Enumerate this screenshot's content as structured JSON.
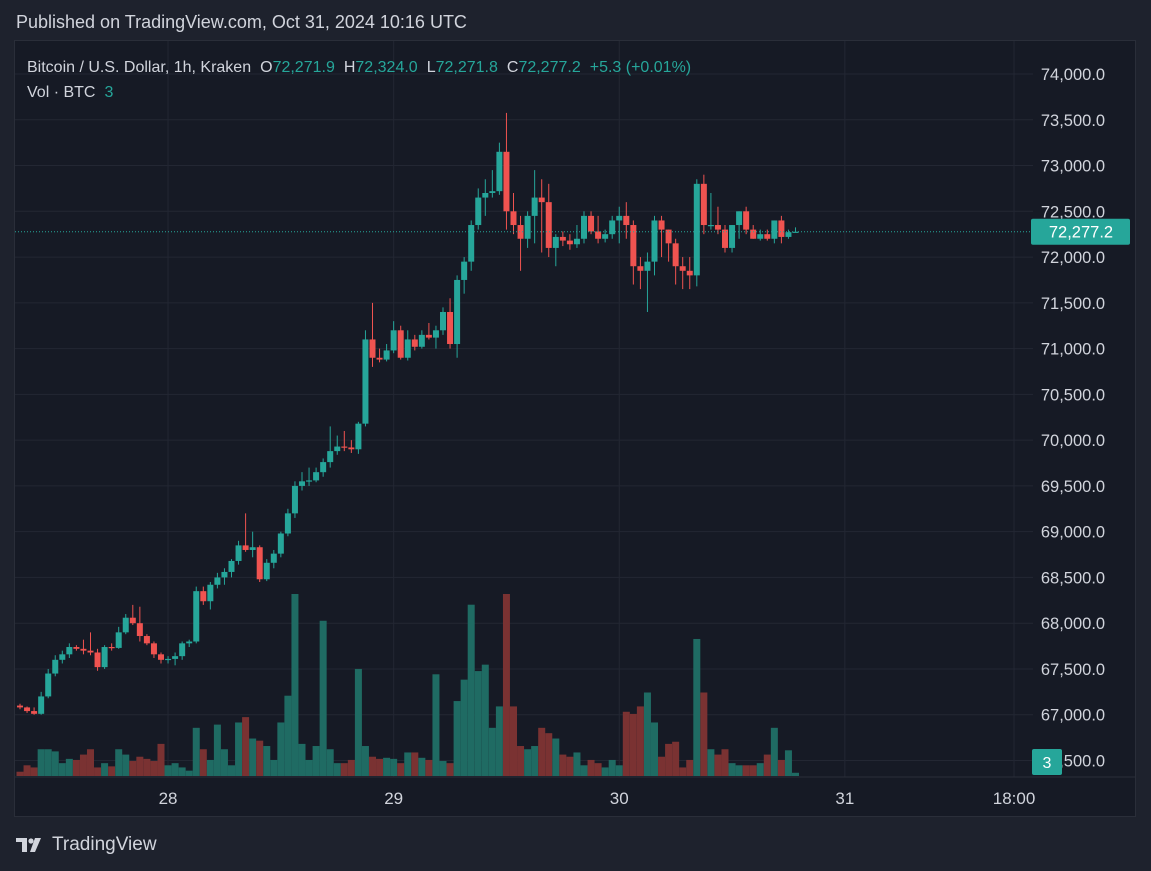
{
  "header": {
    "published": "Published on TradingView.com, Oct 31, 2024 10:16 UTC"
  },
  "legend": {
    "symbol": "Bitcoin / U.S. Dollar, 1h, Kraken",
    "o_label": "O",
    "o_value": "72,271.9",
    "h_label": "H",
    "h_value": "72,324.0",
    "l_label": "L",
    "l_value": "72,271.8",
    "c_label": "C",
    "c_value": "72,277.2",
    "change": "+5.3 (+0.01%)",
    "vol_label": "Vol · BTC",
    "vol_value": "3"
  },
  "footer": {
    "brand": "TradingView"
  },
  "colors": {
    "up": "#26a69a",
    "down": "#ef5350",
    "up_vol": "#1f6b63",
    "down_vol": "#7a3232",
    "background": "#161a25",
    "grid": "#232733"
  },
  "chart_data": {
    "type": "candlestick",
    "title": "Bitcoin / U.S. Dollar, 1h, Kraken",
    "y_axis": {
      "side": "right",
      "ticks": [
        66500,
        67000,
        67500,
        68000,
        68500,
        69000,
        69500,
        70000,
        70500,
        71000,
        71500,
        72000,
        72500,
        73000,
        73500,
        74000
      ],
      "tick_labels": [
        "66,500.0",
        "67,000.0",
        "67,500.0",
        "68,000.0",
        "68,500.0",
        "69,000.0",
        "69,500.0",
        "70,000.0",
        "70,500.0",
        "71,000.0",
        "71,500.0",
        "72,000.0",
        "72,500.0",
        "73,000.0",
        "73,500.0",
        "74,000.0"
      ]
    },
    "x_axis": {
      "labels": [
        {
          "text": "28",
          "index": 21
        },
        {
          "text": "29",
          "index": 53
        },
        {
          "text": "30",
          "index": 85
        },
        {
          "text": "31",
          "index": 117
        },
        {
          "text": "18:00",
          "index": 141
        }
      ]
    },
    "last_price": 72277.2,
    "last_price_label": "72,277.2",
    "last_volume_label": "3",
    "volume_max": 170,
    "grid": true,
    "candles": [
      {
        "o": 67100,
        "h": 67120,
        "l": 67060,
        "c": 67080,
        "v": 4
      },
      {
        "o": 67080,
        "h": 67090,
        "l": 67020,
        "c": 67040,
        "v": 10
      },
      {
        "o": 67040,
        "h": 67080,
        "l": 67000,
        "c": 67010,
        "v": 8
      },
      {
        "o": 67010,
        "h": 67250,
        "l": 67000,
        "c": 67200,
        "v": 25
      },
      {
        "o": 67200,
        "h": 67500,
        "l": 67180,
        "c": 67450,
        "v": 25
      },
      {
        "o": 67450,
        "h": 67650,
        "l": 67420,
        "c": 67600,
        "v": 23
      },
      {
        "o": 67600,
        "h": 67700,
        "l": 67560,
        "c": 67660,
        "v": 12
      },
      {
        "o": 67660,
        "h": 67780,
        "l": 67620,
        "c": 67740,
        "v": 16
      },
      {
        "o": 67740,
        "h": 67760,
        "l": 67700,
        "c": 67720,
        "v": 15
      },
      {
        "o": 67720,
        "h": 67820,
        "l": 67660,
        "c": 67700,
        "v": 20
      },
      {
        "o": 67700,
        "h": 67900,
        "l": 67650,
        "c": 67680,
        "v": 25
      },
      {
        "o": 67680,
        "h": 67720,
        "l": 67480,
        "c": 67520,
        "v": 8
      },
      {
        "o": 67520,
        "h": 67760,
        "l": 67500,
        "c": 67740,
        "v": 12
      },
      {
        "o": 67740,
        "h": 67780,
        "l": 67700,
        "c": 67730,
        "v": 9
      },
      {
        "o": 67730,
        "h": 67960,
        "l": 67720,
        "c": 67900,
        "v": 25
      },
      {
        "o": 67900,
        "h": 68100,
        "l": 67880,
        "c": 68060,
        "v": 20
      },
      {
        "o": 68060,
        "h": 68200,
        "l": 67980,
        "c": 68000,
        "v": 14
      },
      {
        "o": 68000,
        "h": 68180,
        "l": 67800,
        "c": 67860,
        "v": 18
      },
      {
        "o": 67860,
        "h": 67880,
        "l": 67760,
        "c": 67780,
        "v": 16
      },
      {
        "o": 67780,
        "h": 67800,
        "l": 67620,
        "c": 67660,
        "v": 14
      },
      {
        "o": 67660,
        "h": 67680,
        "l": 67560,
        "c": 67600,
        "v": 30
      },
      {
        "o": 67600,
        "h": 67640,
        "l": 67560,
        "c": 67610,
        "v": 10
      },
      {
        "o": 67610,
        "h": 67680,
        "l": 67540,
        "c": 67640,
        "v": 12
      },
      {
        "o": 67640,
        "h": 67800,
        "l": 67600,
        "c": 67780,
        "v": 8
      },
      {
        "o": 67780,
        "h": 67820,
        "l": 67740,
        "c": 67800,
        "v": 5
      },
      {
        "o": 67800,
        "h": 68400,
        "l": 67780,
        "c": 68350,
        "v": 45
      },
      {
        "o": 68350,
        "h": 68400,
        "l": 68200,
        "c": 68240,
        "v": 25
      },
      {
        "o": 68240,
        "h": 68450,
        "l": 68150,
        "c": 68420,
        "v": 15
      },
      {
        "o": 68420,
        "h": 68550,
        "l": 68380,
        "c": 68500,
        "v": 48
      },
      {
        "o": 68500,
        "h": 68600,
        "l": 68420,
        "c": 68560,
        "v": 25
      },
      {
        "o": 68560,
        "h": 68700,
        "l": 68500,
        "c": 68680,
        "v": 10
      },
      {
        "o": 68680,
        "h": 68900,
        "l": 68640,
        "c": 68850,
        "v": 50
      },
      {
        "o": 68850,
        "h": 69200,
        "l": 68780,
        "c": 68800,
        "v": 55
      },
      {
        "o": 68800,
        "h": 69000,
        "l": 68720,
        "c": 68830,
        "v": 35
      },
      {
        "o": 68830,
        "h": 68850,
        "l": 68450,
        "c": 68480,
        "v": 33
      },
      {
        "o": 68480,
        "h": 68700,
        "l": 68460,
        "c": 68660,
        "v": 28
      },
      {
        "o": 68660,
        "h": 68800,
        "l": 68600,
        "c": 68760,
        "v": 15
      },
      {
        "o": 68760,
        "h": 69000,
        "l": 68720,
        "c": 68980,
        "v": 50
      },
      {
        "o": 68980,
        "h": 69250,
        "l": 68950,
        "c": 69200,
        "v": 75
      },
      {
        "o": 69200,
        "h": 69550,
        "l": 69150,
        "c": 69500,
        "v": 170
      },
      {
        "o": 69500,
        "h": 69650,
        "l": 69450,
        "c": 69550,
        "v": 30
      },
      {
        "o": 69550,
        "h": 69700,
        "l": 69500,
        "c": 69560,
        "v": 15
      },
      {
        "o": 69560,
        "h": 69700,
        "l": 69540,
        "c": 69650,
        "v": 28
      },
      {
        "o": 69650,
        "h": 69800,
        "l": 69600,
        "c": 69760,
        "v": 145
      },
      {
        "o": 69760,
        "h": 70150,
        "l": 69700,
        "c": 69880,
        "v": 25
      },
      {
        "o": 69880,
        "h": 70050,
        "l": 69840,
        "c": 69930,
        "v": 12
      },
      {
        "o": 69930,
        "h": 70100,
        "l": 69880,
        "c": 69920,
        "v": 12
      },
      {
        "o": 69920,
        "h": 70000,
        "l": 69860,
        "c": 69900,
        "v": 15
      },
      {
        "o": 69900,
        "h": 70200,
        "l": 69850,
        "c": 70180,
        "v": 100
      },
      {
        "o": 70180,
        "h": 71200,
        "l": 70150,
        "c": 71100,
        "v": 28
      },
      {
        "o": 71100,
        "h": 71500,
        "l": 70800,
        "c": 70900,
        "v": 18
      },
      {
        "o": 70900,
        "h": 71000,
        "l": 70850,
        "c": 70880,
        "v": 16
      },
      {
        "o": 70880,
        "h": 71050,
        "l": 70860,
        "c": 70980,
        "v": 17
      },
      {
        "o": 70980,
        "h": 71300,
        "l": 70950,
        "c": 71200,
        "v": 16
      },
      {
        "o": 71200,
        "h": 71250,
        "l": 70880,
        "c": 70900,
        "v": 12
      },
      {
        "o": 70900,
        "h": 71200,
        "l": 70870,
        "c": 71100,
        "v": 22
      },
      {
        "o": 71100,
        "h": 71150,
        "l": 70980,
        "c": 71020,
        "v": 22
      },
      {
        "o": 71020,
        "h": 71200,
        "l": 71000,
        "c": 71150,
        "v": 17
      },
      {
        "o": 71150,
        "h": 71280,
        "l": 71100,
        "c": 71120,
        "v": 15
      },
      {
        "o": 71120,
        "h": 71250,
        "l": 71000,
        "c": 71200,
        "v": 95
      },
      {
        "o": 71200,
        "h": 71450,
        "l": 71150,
        "c": 71400,
        "v": 14
      },
      {
        "o": 71400,
        "h": 71550,
        "l": 71000,
        "c": 71050,
        "v": 12
      },
      {
        "o": 71050,
        "h": 71800,
        "l": 70900,
        "c": 71750,
        "v": 70
      },
      {
        "o": 71750,
        "h": 72000,
        "l": 71600,
        "c": 71950,
        "v": 90
      },
      {
        "o": 71950,
        "h": 72400,
        "l": 71850,
        "c": 72350,
        "v": 160
      },
      {
        "o": 72350,
        "h": 72750,
        "l": 72300,
        "c": 72650,
        "v": 98
      },
      {
        "o": 72650,
        "h": 72850,
        "l": 72450,
        "c": 72700,
        "v": 104
      },
      {
        "o": 72700,
        "h": 72950,
        "l": 72650,
        "c": 72720,
        "v": 45
      },
      {
        "o": 72720,
        "h": 73250,
        "l": 72680,
        "c": 73150,
        "v": 65
      },
      {
        "o": 73150,
        "h": 73575,
        "l": 72300,
        "c": 72500,
        "v": 170
      },
      {
        "o": 72500,
        "h": 72700,
        "l": 72250,
        "c": 72350,
        "v": 65
      },
      {
        "o": 72350,
        "h": 72450,
        "l": 71850,
        "c": 72200,
        "v": 28
      },
      {
        "o": 72200,
        "h": 72500,
        "l": 72100,
        "c": 72450,
        "v": 25
      },
      {
        "o": 72450,
        "h": 72950,
        "l": 72150,
        "c": 72650,
        "v": 28
      },
      {
        "o": 72650,
        "h": 72850,
        "l": 72050,
        "c": 72600,
        "v": 45
      },
      {
        "o": 72600,
        "h": 72800,
        "l": 72000,
        "c": 72100,
        "v": 40
      },
      {
        "o": 72100,
        "h": 72250,
        "l": 71900,
        "c": 72220,
        "v": 35
      },
      {
        "o": 72220,
        "h": 72280,
        "l": 72120,
        "c": 72180,
        "v": 20
      },
      {
        "o": 72180,
        "h": 72250,
        "l": 72080,
        "c": 72140,
        "v": 18
      },
      {
        "o": 72140,
        "h": 72350,
        "l": 72100,
        "c": 72200,
        "v": 22
      },
      {
        "o": 72200,
        "h": 72500,
        "l": 72150,
        "c": 72450,
        "v": 10
      },
      {
        "o": 72450,
        "h": 72500,
        "l": 72250,
        "c": 72280,
        "v": 15
      },
      {
        "o": 72280,
        "h": 72450,
        "l": 72150,
        "c": 72200,
        "v": 12
      },
      {
        "o": 72200,
        "h": 72300,
        "l": 72160,
        "c": 72250,
        "v": 8
      },
      {
        "o": 72250,
        "h": 72450,
        "l": 72200,
        "c": 72400,
        "v": 15
      },
      {
        "o": 72400,
        "h": 72550,
        "l": 72150,
        "c": 72450,
        "v": 10
      },
      {
        "o": 72450,
        "h": 72600,
        "l": 72200,
        "c": 72350,
        "v": 60
      },
      {
        "o": 72350,
        "h": 72400,
        "l": 71700,
        "c": 71900,
        "v": 58
      },
      {
        "o": 71900,
        "h": 72000,
        "l": 71650,
        "c": 71850,
        "v": 65
      },
      {
        "o": 71850,
        "h": 72050,
        "l": 71400,
        "c": 71950,
        "v": 78
      },
      {
        "o": 71950,
        "h": 72450,
        "l": 71800,
        "c": 72400,
        "v": 50
      },
      {
        "o": 72400,
        "h": 72450,
        "l": 72000,
        "c": 72300,
        "v": 18
      },
      {
        "o": 72300,
        "h": 72250,
        "l": 71950,
        "c": 72150,
        "v": 30
      },
      {
        "o": 72150,
        "h": 72200,
        "l": 71700,
        "c": 71900,
        "v": 32
      },
      {
        "o": 71900,
        "h": 72000,
        "l": 71650,
        "c": 71850,
        "v": 8
      },
      {
        "o": 71850,
        "h": 72000,
        "l": 71650,
        "c": 71800,
        "v": 15
      },
      {
        "o": 71800,
        "h": 72850,
        "l": 71680,
        "c": 72800,
        "v": 128
      },
      {
        "o": 72800,
        "h": 72900,
        "l": 72250,
        "c": 72350,
        "v": 78
      },
      {
        "o": 72350,
        "h": 72700,
        "l": 72300,
        "c": 72350,
        "v": 25
      },
      {
        "o": 72350,
        "h": 72550,
        "l": 72250,
        "c": 72300,
        "v": 20
      },
      {
        "o": 72300,
        "h": 72350,
        "l": 72050,
        "c": 72100,
        "v": 25
      },
      {
        "o": 72100,
        "h": 72350,
        "l": 72050,
        "c": 72350,
        "v": 12
      },
      {
        "o": 72350,
        "h": 72500,
        "l": 72200,
        "c": 72500,
        "v": 10
      },
      {
        "o": 72500,
        "h": 72550,
        "l": 72250,
        "c": 72300,
        "v": 10
      },
      {
        "o": 72300,
        "h": 72350,
        "l": 72200,
        "c": 72200,
        "v": 10
      },
      {
        "o": 72200,
        "h": 72300,
        "l": 72180,
        "c": 72250,
        "v": 12
      },
      {
        "o": 72250,
        "h": 72300,
        "l": 72180,
        "c": 72200,
        "v": 20
      },
      {
        "o": 72200,
        "h": 72400,
        "l": 72150,
        "c": 72400,
        "v": 45
      },
      {
        "o": 72400,
        "h": 72450,
        "l": 72150,
        "c": 72220,
        "v": 15
      },
      {
        "o": 72220,
        "h": 72300,
        "l": 72200,
        "c": 72272,
        "v": 24
      },
      {
        "o": 72272,
        "h": 72324,
        "l": 72272,
        "c": 72277,
        "v": 3
      }
    ]
  }
}
